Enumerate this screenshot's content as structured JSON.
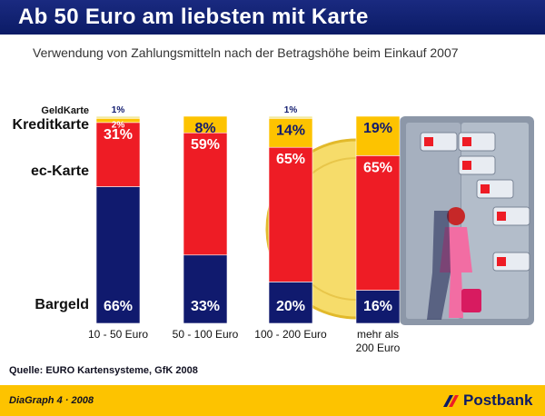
{
  "header": {
    "title": "Ab 50 Euro am liebsten mit Karte"
  },
  "subtitle": "Verwendung von Zahlungsmitteln nach der Betragshöhe beim Einkauf 2007",
  "source": "Quelle: EURO Kartensysteme, GfK 2008",
  "footer": {
    "left": "DiaGraph 4 · 2008",
    "brand": "Postbank"
  },
  "colors": {
    "bargeld": "#101a6e",
    "ec": "#ee1c25",
    "kredit": "#fdc300",
    "geld": "#f2e9a0",
    "header": "#0b1b66"
  },
  "chart_data": {
    "type": "bar",
    "stacked": true,
    "categories": [
      "10 - 50 Euro",
      "50 - 100 Euro",
      "100 - 200 Euro",
      "mehr als\n200 Euro"
    ],
    "series": [
      {
        "name": "Bargeld",
        "values": [
          66,
          33,
          20,
          16
        ]
      },
      {
        "name": "ec-Karte",
        "values": [
          31,
          59,
          65,
          65
        ]
      },
      {
        "name": "Kreditkarte",
        "values": [
          2,
          8,
          14,
          19
        ]
      },
      {
        "name": "GeldKarte",
        "values": [
          1,
          0,
          1,
          0
        ]
      }
    ],
    "value_suffix": "%",
    "ylim": [
      0,
      100
    ]
  }
}
